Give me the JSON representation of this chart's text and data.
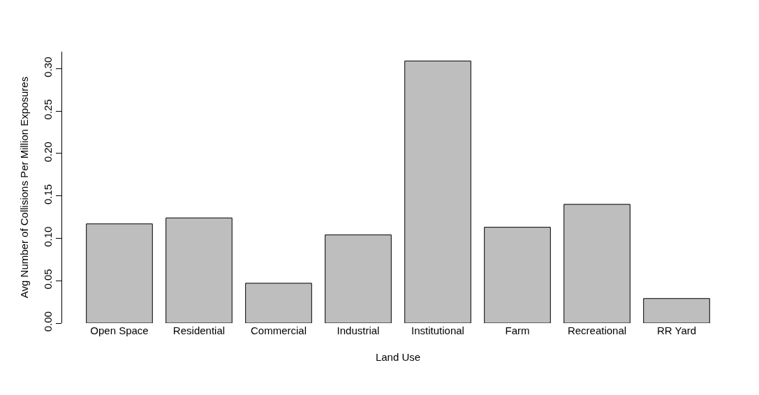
{
  "chart_data": {
    "type": "bar",
    "xlabel": "Land Use",
    "ylabel": "Avg Number of Collisions Per Million Exposures",
    "categories": [
      "Open Space",
      "Residential",
      "Commercial",
      "Industrial",
      "Institutional",
      "Farm",
      "Recreational",
      "RR Yard"
    ],
    "values": [
      0.117,
      0.124,
      0.047,
      0.104,
      0.309,
      0.113,
      0.14,
      0.029
    ],
    "color": "#bebebe",
    "ylim": [
      0,
      0.32
    ],
    "yticks": [
      {
        "value": 0,
        "label": "0.00"
      },
      {
        "value": 0.05,
        "label": "0.05"
      },
      {
        "value": 0.1,
        "label": "0.10"
      },
      {
        "value": 0.15,
        "label": "0.15"
      },
      {
        "value": 0.2,
        "label": "0.20"
      },
      {
        "value": 0.25,
        "label": "0.25"
      },
      {
        "value": 0.3,
        "label": "0.30"
      }
    ],
    "grid": false,
    "legend": false
  }
}
